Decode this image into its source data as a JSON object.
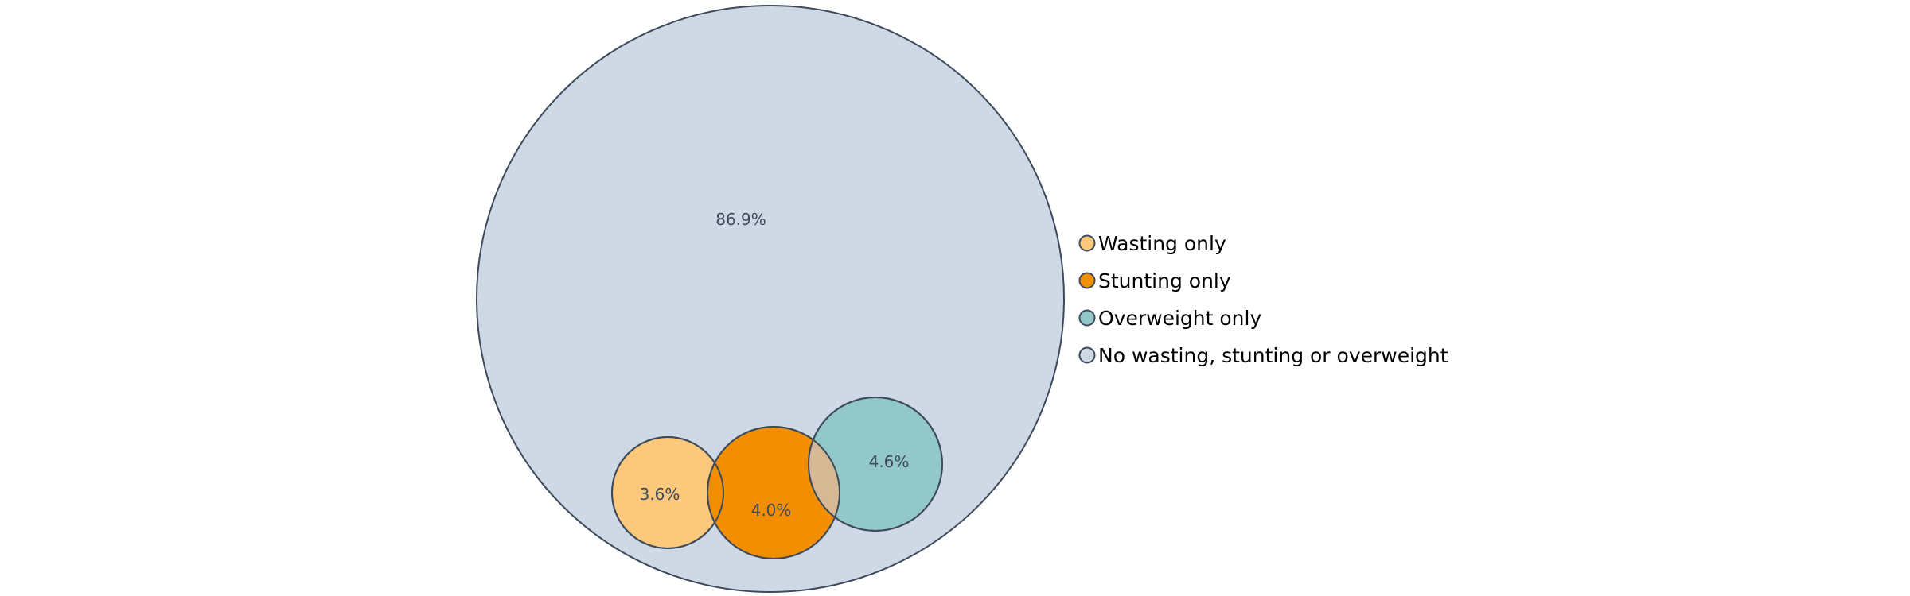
{
  "diagram": {
    "outline_color": "#3d4a5c",
    "overlap_color": "#d7b894",
    "sets": [
      {
        "key": "no_condition",
        "legend": "No wasting, stunting or overweight",
        "value_label": "86.9%",
        "value": 86.9,
        "color": "#cfd9e6"
      },
      {
        "key": "wasting",
        "legend": "Wasting only",
        "value_label": "3.6%",
        "value": 3.6,
        "color": "#fbc87c"
      },
      {
        "key": "stunting",
        "legend": "Stunting only",
        "value_label": "4.0%",
        "value": 4.0,
        "color": "#f28e00"
      },
      {
        "key": "overweight",
        "legend": "Overweight only",
        "value_label": "4.6%",
        "value": 4.6,
        "color": "#93c8c8"
      }
    ],
    "legend_order": [
      "wasting",
      "stunting",
      "overweight",
      "no_condition"
    ]
  }
}
